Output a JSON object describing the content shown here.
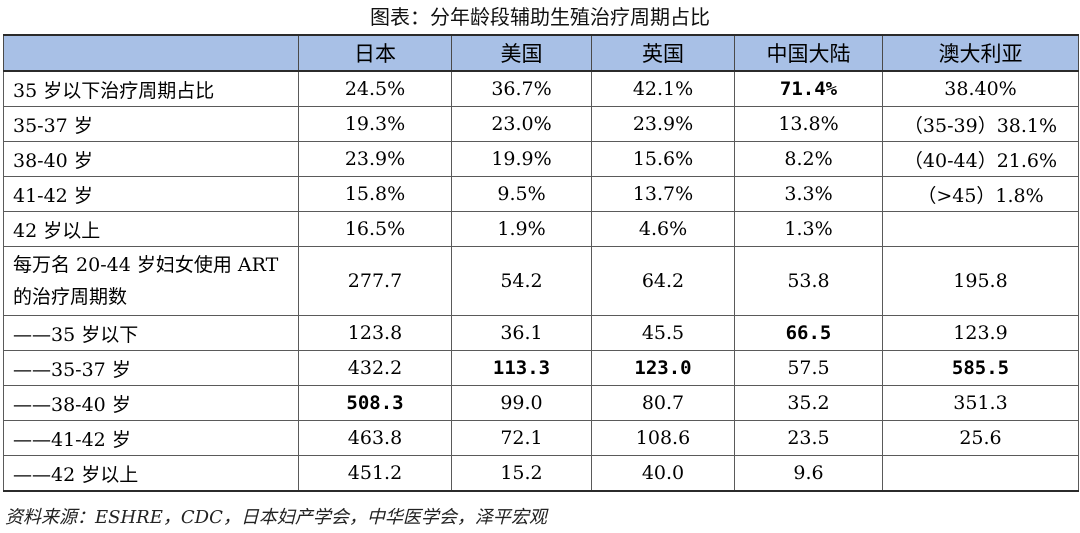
{
  "caption": "图表：分年龄段辅助生殖治疗周期占比",
  "headers": [
    "",
    "日本",
    "美国",
    "英国",
    "中国大陆",
    "澳大利亚"
  ],
  "rows": [
    {
      "label": "35 岁以下治疗周期占比",
      "cells": [
        "24.5%",
        "36.7%",
        "42.1%",
        "71.4%",
        "38.40%"
      ]
    },
    {
      "label": "35-37 岁",
      "cells": [
        "19.3%",
        "23.0%",
        "23.9%",
        "13.8%",
        "（35-39）38.1%"
      ]
    },
    {
      "label": "38-40 岁",
      "cells": [
        "23.9%",
        "19.9%",
        "15.6%",
        "8.2%",
        "（40-44）21.6%"
      ]
    },
    {
      "label": "41-42 岁",
      "cells": [
        "15.8%",
        "9.5%",
        "13.7%",
        "3.3%",
        "（>45）1.8%"
      ]
    },
    {
      "label": "42 岁以上",
      "cells": [
        "16.5%",
        "1.9%",
        "4.6%",
        "1.3%",
        ""
      ]
    },
    {
      "label": "每万名 20-44 岁妇女使用 ART 的治疗周期数",
      "cells": [
        "277.7",
        "54.2",
        "64.2",
        "53.8",
        "195.8"
      ]
    },
    {
      "label": "——35 岁以下",
      "cells": [
        "123.8",
        "36.1",
        "45.5",
        "66.5",
        "123.9"
      ]
    },
    {
      "label": "——35-37 岁",
      "cells": [
        "432.2",
        "113.3",
        "123.0",
        "57.5",
        "585.5"
      ]
    },
    {
      "label": "——38-40 岁",
      "cells": [
        "508.3",
        "99.0",
        "80.7",
        "35.2",
        "351.3"
      ]
    },
    {
      "label": "——41-42 岁",
      "cells": [
        "463.8",
        "72.1",
        "108.6",
        "23.5",
        "25.6"
      ]
    },
    {
      "label": "——42 岁以上",
      "cells": [
        "451.2",
        "15.2",
        "40.0",
        "9.6",
        ""
      ]
    }
  ],
  "source": "资料来源：ESHRE，CDC，日本妇产学会，中华医学会，泽平宏观",
  "colors": {
    "header_bg": "#a8c0e6",
    "border": "#2b2b2b"
  }
}
